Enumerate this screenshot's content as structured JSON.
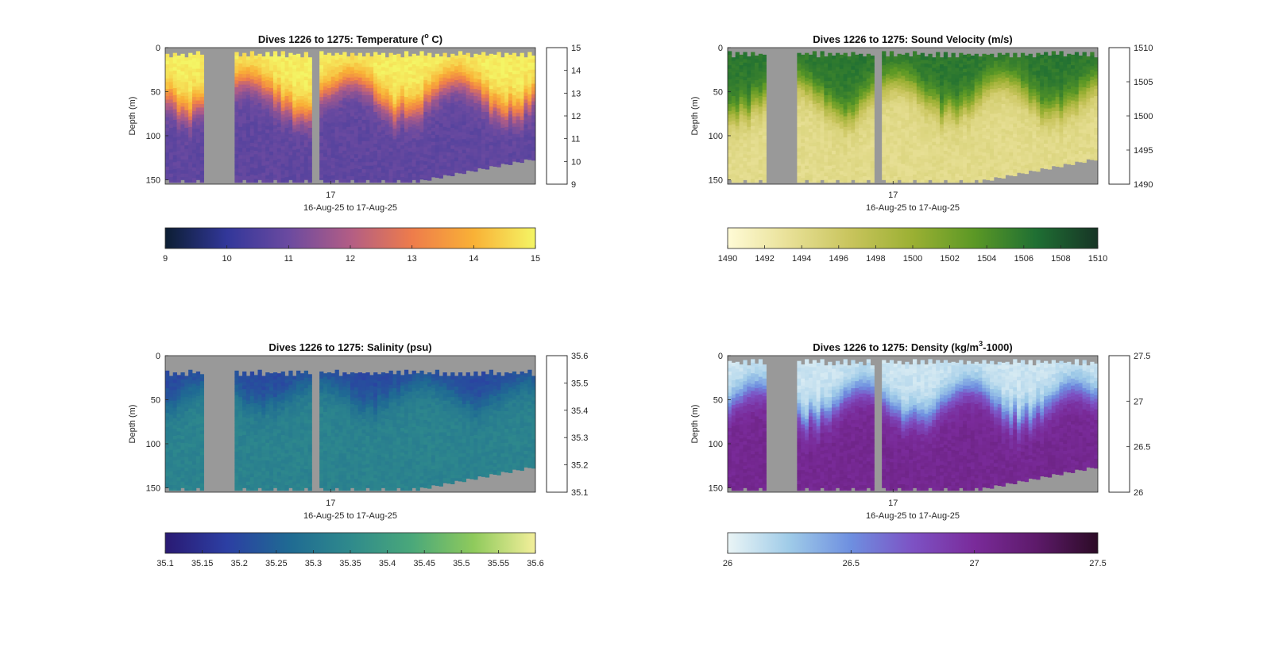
{
  "figure": {
    "background": "#ffffff",
    "no_data_color": "#999999"
  },
  "chart_data": [
    {
      "type": "heatmap",
      "title_main": "Dives 1226 to 1275: Temperature (",
      "title_sup": "o",
      "title_end": " C)",
      "variable": "temperature",
      "xlabel": "16-Aug-25 to 17-Aug-25",
      "ylabel": "Depth (m)",
      "x_tick_labels": [
        "17"
      ],
      "y_ticks": [
        0,
        50,
        100,
        150
      ],
      "ylim": [
        0,
        155
      ],
      "dives": [
        1226,
        1275
      ],
      "colormap": [
        "#0c1e33",
        "#32379a",
        "#6b4aa0",
        "#b25d85",
        "#ee7c4b",
        "#f9b136",
        "#f4f565"
      ],
      "clim": [
        9,
        15
      ],
      "right_colorbar_ticks": [
        9,
        10,
        11,
        12,
        13,
        14,
        15
      ],
      "bottom_colorbar_ticks": [
        9,
        10,
        11,
        12,
        13,
        14,
        15
      ],
      "mixed_layer_depth_range_m": [
        35,
        80
      ],
      "surface_value": 14.9,
      "deep_value": 10.8
    },
    {
      "type": "heatmap",
      "title_main": "Dives 1226 to 1275: Sound Velocity (m/s)",
      "title_sup": "",
      "title_end": "",
      "variable": "sound_velocity",
      "xlabel": "16-Aug-25 to 17-Aug-25",
      "ylabel": "Depth (m)",
      "x_tick_labels": [
        "17"
      ],
      "y_ticks": [
        0,
        50,
        100,
        150
      ],
      "ylim": [
        0,
        155
      ],
      "dives": [
        1226,
        1275
      ],
      "colormap": [
        "#fffbd6",
        "#e8e096",
        "#c8c45c",
        "#9bb033",
        "#5b9825",
        "#1f6f33",
        "#173526"
      ],
      "clim": [
        1490,
        1510
      ],
      "right_colorbar_ticks": [
        1490,
        1495,
        1500,
        1505,
        1510
      ],
      "bottom_colorbar_ticks": [
        1490,
        1492,
        1494,
        1496,
        1498,
        1500,
        1502,
        1504,
        1506,
        1508,
        1510
      ],
      "mixed_layer_depth_range_m": [
        35,
        80
      ],
      "surface_value": 1506,
      "deep_value": 1494
    },
    {
      "type": "heatmap",
      "title_main": "Dives 1226 to 1275: Salinity (psu)",
      "title_sup": "",
      "title_end": "",
      "variable": "salinity",
      "xlabel": "16-Aug-25 to 17-Aug-25",
      "ylabel": "Depth (m)",
      "x_tick_labels": [
        "17"
      ],
      "y_ticks": [
        0,
        50,
        100,
        150
      ],
      "ylim": [
        0,
        155
      ],
      "dives": [
        1226,
        1275
      ],
      "colormap": [
        "#2a1a73",
        "#2c3fa3",
        "#1f6a93",
        "#2f8a8c",
        "#4aa87a",
        "#8fca5c",
        "#f3ef9b"
      ],
      "clim": [
        35.1,
        35.6
      ],
      "right_colorbar_ticks": [
        "35.1",
        "35.2",
        "35.3",
        "35.4",
        "35.5",
        "35.6"
      ],
      "bottom_colorbar_ticks": [
        "35.1",
        "35.15",
        "35.2",
        "35.25",
        "35.3",
        "35.35",
        "35.4",
        "35.45",
        "35.5",
        "35.55",
        "35.6"
      ],
      "mixed_layer_depth_range_m": [
        30,
        60
      ],
      "surface_value": 35.2,
      "deep_value": 35.33
    },
    {
      "type": "heatmap",
      "title_main": "Dives 1226 to 1275: Density (kg/m",
      "title_sup": "3",
      "title_end": "-1000)",
      "variable": "density",
      "xlabel": "16-Aug-25 to 17-Aug-25",
      "ylabel": "Depth (m)",
      "x_tick_labels": [
        "17"
      ],
      "y_ticks": [
        0,
        50,
        100,
        150
      ],
      "ylim": [
        0,
        155
      ],
      "dives": [
        1226,
        1275
      ],
      "colormap": [
        "#eaf5f6",
        "#9fcbe8",
        "#6e8fe0",
        "#7d52c4",
        "#7a2b9a",
        "#5d1a6a",
        "#2c0b26"
      ],
      "clim": [
        26,
        27.5
      ],
      "right_colorbar_ticks": [
        "26",
        "26.5",
        "27",
        "27.5"
      ],
      "bottom_colorbar_ticks": [
        "26",
        "26.5",
        "27",
        "27.5"
      ],
      "mixed_layer_depth_range_m": [
        35,
        80
      ],
      "surface_value": 26.1,
      "deep_value": 27.05
    }
  ]
}
